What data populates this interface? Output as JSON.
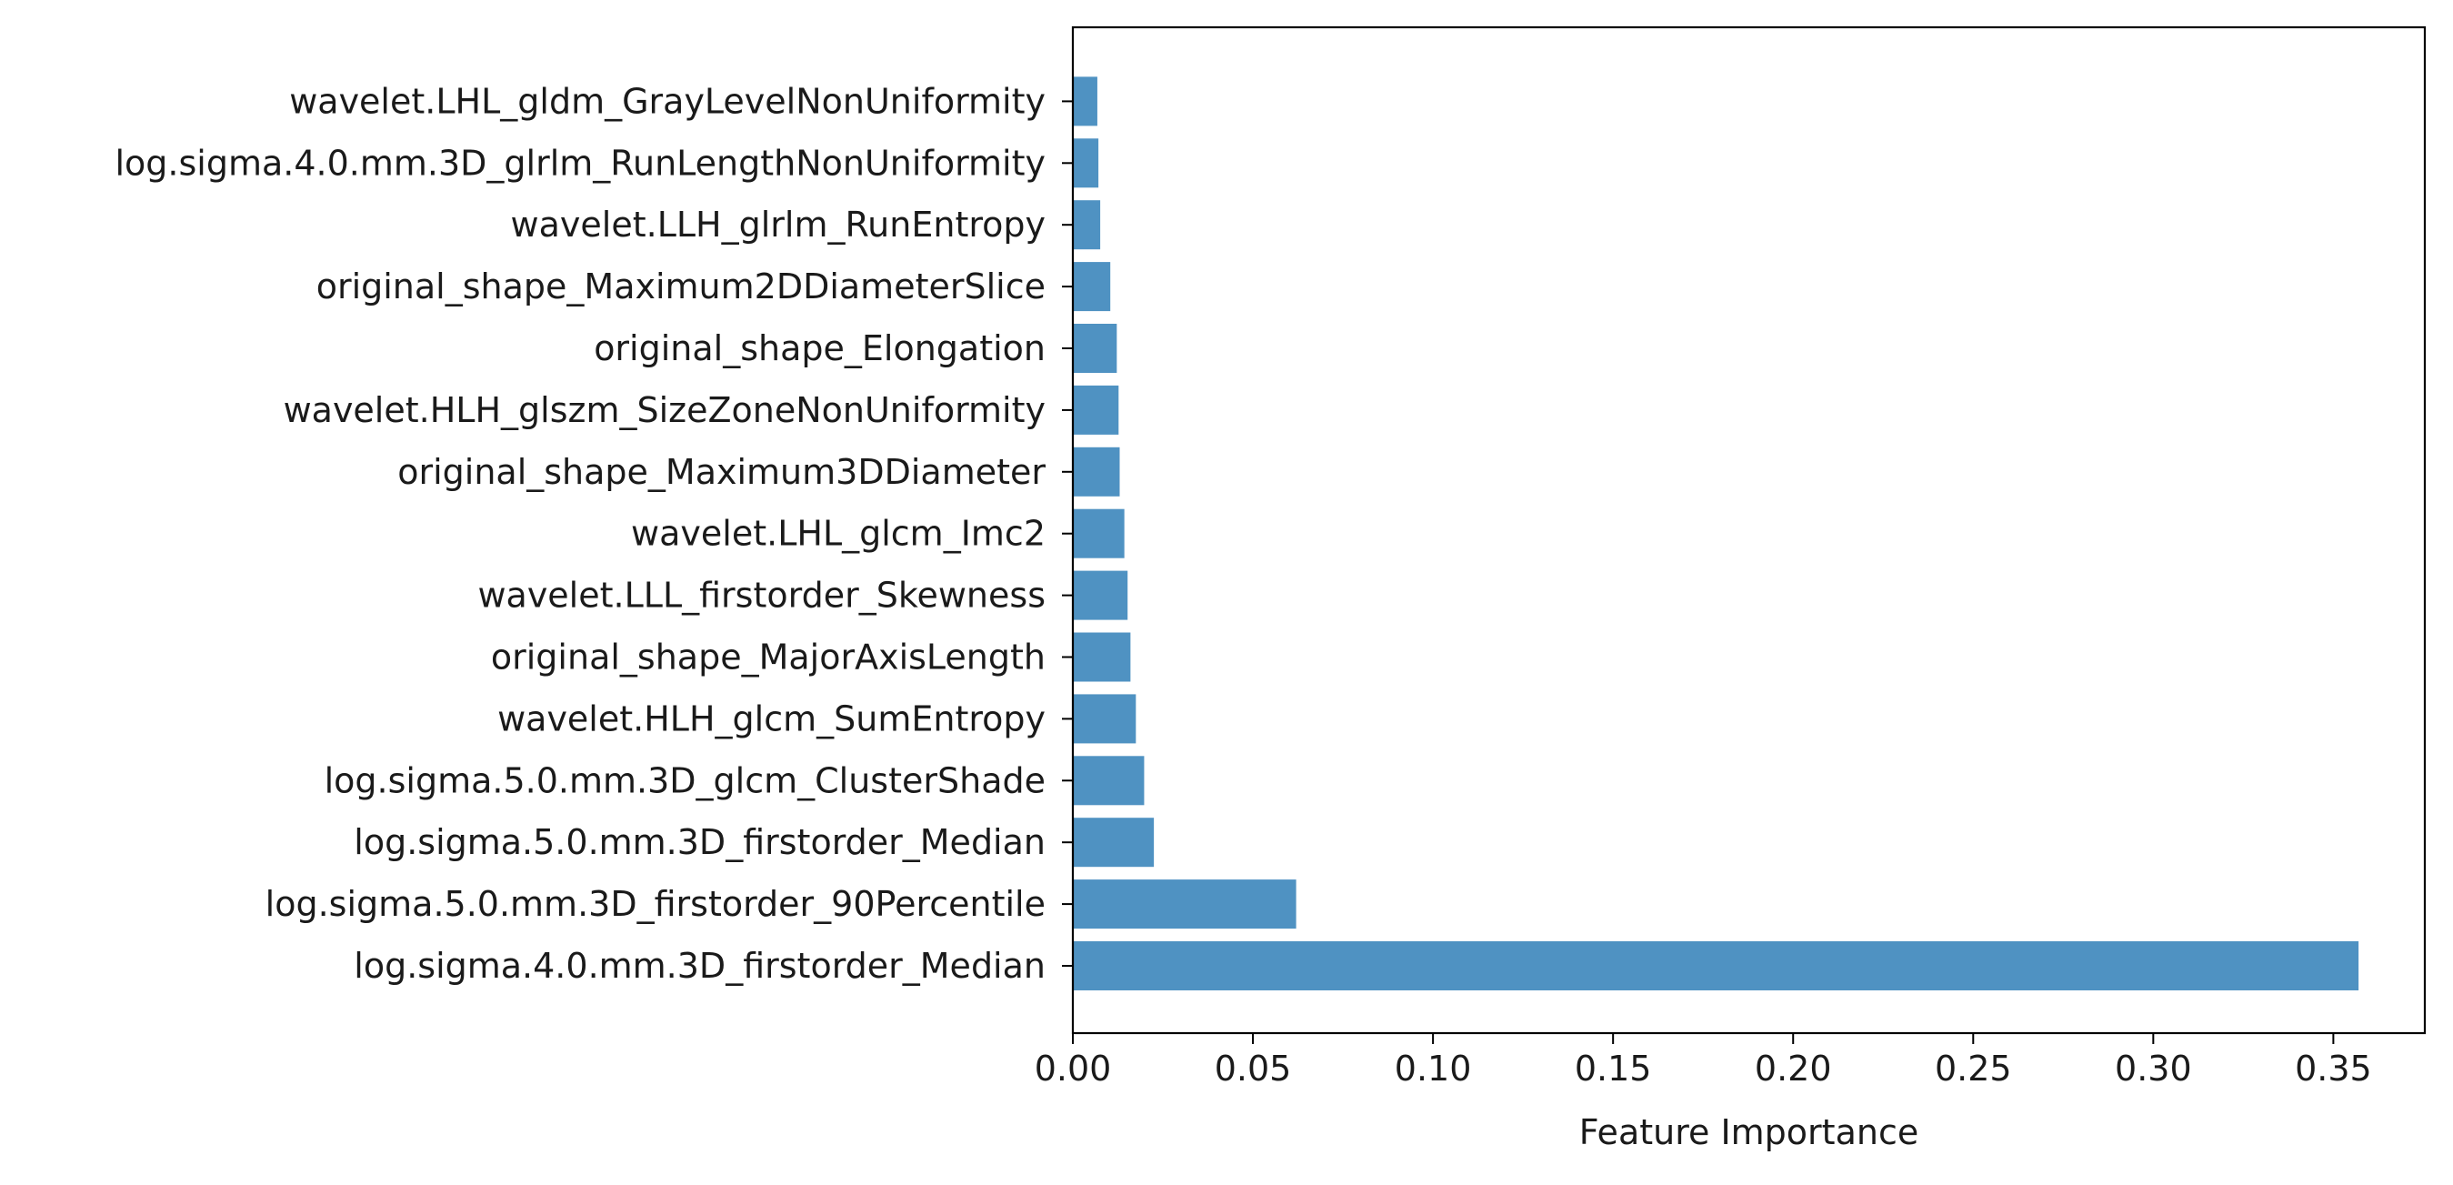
{
  "chart_data": {
    "type": "bar",
    "orientation": "horizontal",
    "title": "",
    "xlabel": "Feature Importance",
    "ylabel": "",
    "xlim": [
      0,
      0.3754
    ],
    "grid": false,
    "bar_color": "#4f92c2",
    "xticks": [
      "0.00",
      "0.05",
      "0.10",
      "0.15",
      "0.20",
      "0.25",
      "0.30",
      "0.35"
    ],
    "categories": [
      "log.sigma.4.0.mm.3D_firstorder_Median",
      "log.sigma.5.0.mm.3D_firstorder_90Percentile",
      "log.sigma.5.0.mm.3D_firstorder_Median",
      "log.sigma.5.0.mm.3D_glcm_ClusterShade",
      "wavelet.HLH_glcm_SumEntropy",
      "original_shape_MajorAxisLength",
      "wavelet.LLL_firstorder_Skewness",
      "wavelet.LHL_glcm_Imc2",
      "original_shape_Maximum3DDiameter",
      "wavelet.HLH_glszm_SizeZoneNonUniformity",
      "original_shape_Elongation",
      "original_shape_Maximum2DDiameterSlice",
      "wavelet.LLH_glrlm_RunEntropy",
      "log.sigma.4.0.mm.3D_glrlm_RunLengthNonUniformity",
      "wavelet.LHL_gldm_GrayLevelNonUniformity"
    ],
    "values": [
      0.357,
      0.062,
      0.0225,
      0.0198,
      0.0175,
      0.016,
      0.0152,
      0.0143,
      0.013,
      0.0127,
      0.0122,
      0.0104,
      0.0076,
      0.0071,
      0.0068
    ]
  }
}
